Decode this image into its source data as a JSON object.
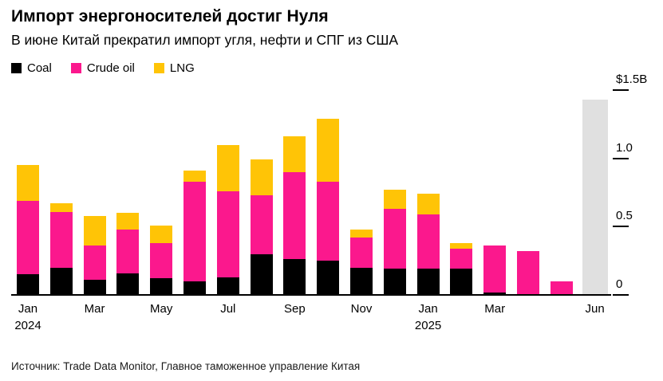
{
  "header": {
    "title": "Импорт энергоносителей достиг Нуля",
    "subtitle": "В июне Китай прекратил импорт угля, нефти и СПГ из США"
  },
  "footer": {
    "source": "Источник: Trade Data Monitor, Главное таможенное управление Китая"
  },
  "chart_data": {
    "type": "bar",
    "stacked": true,
    "unit": "$B",
    "title": "Импорт энергоносителей достиг Нуля",
    "subtitle": "В июне Китай прекратил импорт угля, нефти и СПГ из США",
    "categories": [
      "Jan 2024",
      "Feb 2024",
      "Mar 2024",
      "Apr 2024",
      "May 2024",
      "Jun 2024",
      "Jul 2024",
      "Aug 2024",
      "Sep 2024",
      "Oct 2024",
      "Nov 2024",
      "Dec 2024",
      "Jan 2025",
      "Feb 2025",
      "Mar 2025",
      "Apr 2025",
      "May 2025",
      "Jun 2025"
    ],
    "series": [
      {
        "name": "Coal",
        "color": "#000000",
        "values": [
          0.15,
          0.2,
          0.11,
          0.16,
          0.12,
          0.1,
          0.13,
          0.3,
          0.26,
          0.25,
          0.2,
          0.19,
          0.19,
          0.19,
          0.02,
          0.0,
          0.0,
          0.0
        ]
      },
      {
        "name": "Crude oil",
        "color": "#fb188d",
        "values": [
          0.54,
          0.41,
          0.25,
          0.32,
          0.26,
          0.73,
          0.63,
          0.43,
          0.64,
          0.58,
          0.22,
          0.44,
          0.4,
          0.15,
          0.34,
          0.32,
          0.1,
          0.0
        ]
      },
      {
        "name": "LNG",
        "color": "#ffc406",
        "values": [
          0.26,
          0.06,
          0.22,
          0.12,
          0.13,
          0.08,
          0.34,
          0.26,
          0.26,
          0.46,
          0.06,
          0.14,
          0.15,
          0.04,
          0.0,
          0.0,
          0.0,
          0.0
        ]
      }
    ],
    "ylim": [
      0,
      1.5
    ],
    "grid": false,
    "legend_position": "top-left",
    "y_ticks": [
      {
        "value": 1.5,
        "label": "$1.5B"
      },
      {
        "value": 1.0,
        "label": "1.0"
      },
      {
        "value": 0.5,
        "label": "0.5"
      },
      {
        "value": 0.0,
        "label": "0"
      }
    ],
    "x_ticks": [
      {
        "index": 0,
        "label": "Jan",
        "sub": "2024"
      },
      {
        "index": 2,
        "label": "Mar"
      },
      {
        "index": 4,
        "label": "May"
      },
      {
        "index": 6,
        "label": "Jul"
      },
      {
        "index": 8,
        "label": "Sep"
      },
      {
        "index": 10,
        "label": "Nov"
      },
      {
        "index": 12,
        "label": "Jan",
        "sub": "2025"
      },
      {
        "index": 14,
        "label": "Mar"
      },
      {
        "index": 17,
        "label": "Jun"
      }
    ],
    "highlight": {
      "index": 17,
      "color": "#e0e0e0",
      "top_value": 1.43
    }
  }
}
